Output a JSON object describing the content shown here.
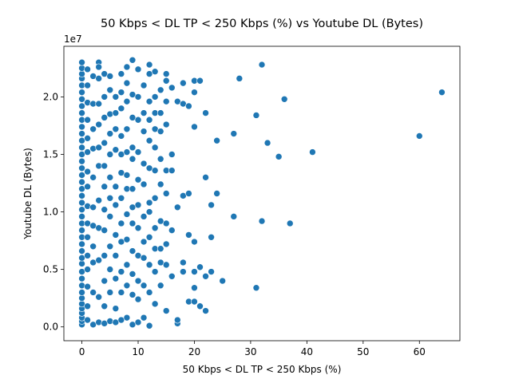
{
  "chart_data": {
    "type": "scatter",
    "title": "50 Kbps < DL TP < 250 Kbps (%) vs Youtube DL (Bytes)",
    "xlabel": "50 Kbps < DL TP < 250 Kbps (%)",
    "ylabel": "Youtube DL (Bytes)",
    "y_offset_label": "1e7",
    "xlim": [
      -3.2,
      67.2
    ],
    "ylim": [
      -0.12,
      2.44
    ],
    "y_scale_factor": 10000000,
    "x_ticks": [
      0,
      10,
      20,
      30,
      40,
      50,
      60
    ],
    "x_tick_labels": [
      "0",
      "10",
      "20",
      "30",
      "40",
      "50",
      "60"
    ],
    "y_ticks": [
      0.0,
      0.5,
      1.0,
      1.5,
      2.0
    ],
    "y_tick_labels": [
      "0.0",
      "0.5",
      "1.0",
      "1.5",
      "2.0"
    ],
    "grid": false,
    "legend": "none",
    "marker_color": "#1f77b4",
    "marker_edge": "#ffffff",
    "points": [
      [
        0,
        0.02
      ],
      [
        0,
        0.05
      ],
      [
        0,
        0.08
      ],
      [
        0,
        0.12
      ],
      [
        0,
        0.16
      ],
      [
        0,
        0.2
      ],
      [
        0,
        0.25
      ],
      [
        0,
        0.3
      ],
      [
        0,
        0.36
      ],
      [
        0,
        0.42
      ],
      [
        0,
        0.48
      ],
      [
        0,
        0.55
      ],
      [
        0,
        0.6
      ],
      [
        0,
        0.66
      ],
      [
        0,
        0.72
      ],
      [
        0,
        0.78
      ],
      [
        0,
        0.84
      ],
      [
        0,
        0.9
      ],
      [
        0,
        0.96
      ],
      [
        0,
        1.02
      ],
      [
        0,
        1.08
      ],
      [
        0,
        1.14
      ],
      [
        0,
        1.2
      ],
      [
        0,
        1.26
      ],
      [
        0,
        1.32
      ],
      [
        0,
        1.38
      ],
      [
        0,
        1.44
      ],
      [
        0,
        1.5
      ],
      [
        0,
        1.56
      ],
      [
        0,
        1.62
      ],
      [
        0,
        1.68
      ],
      [
        0,
        1.74
      ],
      [
        0,
        1.8
      ],
      [
        0,
        1.86
      ],
      [
        0,
        1.92
      ],
      [
        0,
        1.98
      ],
      [
        0,
        2.04
      ],
      [
        0,
        2.1
      ],
      [
        0,
        2.16
      ],
      [
        0,
        2.2
      ],
      [
        0,
        2.25
      ],
      [
        0,
        2.3
      ],
      [
        1,
        0.06
      ],
      [
        1,
        0.18
      ],
      [
        1,
        0.35
      ],
      [
        1,
        0.5
      ],
      [
        1,
        0.62
      ],
      [
        1,
        0.78
      ],
      [
        1,
        0.9
      ],
      [
        1,
        1.05
      ],
      [
        1,
        1.22
      ],
      [
        1,
        1.35
      ],
      [
        1,
        1.52
      ],
      [
        1,
        1.64
      ],
      [
        1,
        1.8
      ],
      [
        1,
        1.95
      ],
      [
        1,
        2.1
      ],
      [
        1,
        2.24
      ],
      [
        2,
        0.02
      ],
      [
        2,
        0.3
      ],
      [
        2,
        0.56
      ],
      [
        2,
        0.7
      ],
      [
        2,
        0.88
      ],
      [
        2,
        1.04
      ],
      [
        2,
        1.3
      ],
      [
        2,
        1.55
      ],
      [
        2,
        1.72
      ],
      [
        2,
        1.94
      ],
      [
        2,
        2.18
      ],
      [
        3,
        0.04
      ],
      [
        3,
        0.26
      ],
      [
        3,
        0.58
      ],
      [
        3,
        0.86
      ],
      [
        3,
        1.1
      ],
      [
        3,
        1.4
      ],
      [
        3,
        1.56
      ],
      [
        3,
        1.76
      ],
      [
        3,
        1.94
      ],
      [
        3,
        2.16
      ],
      [
        3,
        2.3
      ],
      [
        3,
        2.26
      ],
      [
        4,
        0.03
      ],
      [
        4,
        0.18
      ],
      [
        4,
        0.4
      ],
      [
        4,
        0.62
      ],
      [
        4,
        0.84
      ],
      [
        4,
        1.02
      ],
      [
        4,
        1.22
      ],
      [
        4,
        1.4
      ],
      [
        4,
        1.6
      ],
      [
        4,
        1.82
      ],
      [
        4,
        2.0
      ],
      [
        4,
        2.2
      ],
      [
        5,
        0.05
      ],
      [
        5,
        0.3
      ],
      [
        5,
        0.5
      ],
      [
        5,
        0.7
      ],
      [
        5,
        0.96
      ],
      [
        5,
        1.12
      ],
      [
        5,
        1.3
      ],
      [
        5,
        1.5
      ],
      [
        5,
        1.68
      ],
      [
        5,
        1.85
      ],
      [
        5,
        2.06
      ],
      [
        5,
        2.18
      ],
      [
        6,
        0.04
      ],
      [
        6,
        0.16
      ],
      [
        6,
        0.42
      ],
      [
        6,
        0.62
      ],
      [
        6,
        0.8
      ],
      [
        6,
        1.06
      ],
      [
        6,
        1.22
      ],
      [
        6,
        1.54
      ],
      [
        6,
        1.72
      ],
      [
        6,
        1.86
      ],
      [
        6,
        2.0
      ],
      [
        7,
        0.06
      ],
      [
        7,
        0.3
      ],
      [
        7,
        0.48
      ],
      [
        7,
        0.74
      ],
      [
        7,
        0.9
      ],
      [
        7,
        1.12
      ],
      [
        7,
        1.34
      ],
      [
        7,
        1.5
      ],
      [
        7,
        1.66
      ],
      [
        7,
        1.9
      ],
      [
        7,
        2.04
      ],
      [
        7,
        2.2
      ],
      [
        8,
        0.08
      ],
      [
        8,
        0.36
      ],
      [
        8,
        0.54
      ],
      [
        8,
        0.76
      ],
      [
        8,
        0.98
      ],
      [
        8,
        1.2
      ],
      [
        8,
        1.32
      ],
      [
        8,
        1.52
      ],
      [
        8,
        1.72
      ],
      [
        8,
        1.96
      ],
      [
        8,
        2.12
      ],
      [
        8,
        2.26
      ],
      [
        9,
        0.02
      ],
      [
        9,
        0.28
      ],
      [
        9,
        0.46
      ],
      [
        9,
        0.66
      ],
      [
        9,
        0.9
      ],
      [
        9,
        1.04
      ],
      [
        9,
        1.2
      ],
      [
        9,
        1.46
      ],
      [
        9,
        1.56
      ],
      [
        9,
        1.82
      ],
      [
        9,
        2.02
      ],
      [
        9,
        2.32
      ],
      [
        10,
        0.04
      ],
      [
        10,
        0.24
      ],
      [
        10,
        0.4
      ],
      [
        10,
        0.62
      ],
      [
        10,
        0.86
      ],
      [
        10,
        1.06
      ],
      [
        10,
        1.28
      ],
      [
        10,
        1.52
      ],
      [
        10,
        1.8
      ],
      [
        10,
        2.0
      ],
      [
        10,
        2.24
      ],
      [
        11,
        0.08
      ],
      [
        11,
        0.36
      ],
      [
        11,
        0.6
      ],
      [
        11,
        0.74
      ],
      [
        11,
        0.96
      ],
      [
        11,
        1.24
      ],
      [
        11,
        1.42
      ],
      [
        11,
        1.7
      ],
      [
        11,
        1.86
      ],
      [
        11,
        2.1
      ],
      [
        12,
        0.01
      ],
      [
        12,
        0.3
      ],
      [
        12,
        0.54
      ],
      [
        12,
        0.78
      ],
      [
        12,
        1.0
      ],
      [
        12,
        1.08
      ],
      [
        12,
        1.38
      ],
      [
        12,
        1.62
      ],
      [
        12,
        1.8
      ],
      [
        12,
        1.96
      ],
      [
        12,
        2.2
      ],
      [
        12,
        2.28
      ],
      [
        13,
        0.2
      ],
      [
        13,
        0.48
      ],
      [
        13,
        0.68
      ],
      [
        13,
        0.86
      ],
      [
        13,
        1.12
      ],
      [
        13,
        1.36
      ],
      [
        13,
        1.56
      ],
      [
        13,
        1.72
      ],
      [
        13,
        1.86
      ],
      [
        13,
        2.0
      ],
      [
        13,
        2.22
      ],
      [
        14,
        0.36
      ],
      [
        14,
        0.56
      ],
      [
        14,
        0.68
      ],
      [
        14,
        0.92
      ],
      [
        14,
        1.24
      ],
      [
        14,
        1.46
      ],
      [
        14,
        1.7
      ],
      [
        14,
        1.86
      ],
      [
        14,
        2.06
      ],
      [
        15,
        0.14
      ],
      [
        15,
        0.54
      ],
      [
        15,
        0.72
      ],
      [
        15,
        0.9
      ],
      [
        15,
        1.16
      ],
      [
        15,
        1.36
      ],
      [
        15,
        1.76
      ],
      [
        15,
        1.96
      ],
      [
        15,
        2.14
      ],
      [
        15,
        2.2
      ],
      [
        16,
        0.44
      ],
      [
        16,
        0.84
      ],
      [
        16,
        1.36
      ],
      [
        16,
        1.5
      ],
      [
        16,
        2.08
      ],
      [
        17,
        0.03
      ],
      [
        17,
        0.06
      ],
      [
        17,
        1.04
      ],
      [
        17,
        1.96
      ],
      [
        18,
        0.48
      ],
      [
        18,
        0.56
      ],
      [
        18,
        1.14
      ],
      [
        18,
        1.94
      ],
      [
        18,
        2.12
      ],
      [
        19,
        0.22
      ],
      [
        19,
        0.8
      ],
      [
        19,
        1.16
      ],
      [
        19,
        1.92
      ],
      [
        20,
        0.22
      ],
      [
        20,
        0.34
      ],
      [
        20,
        0.48
      ],
      [
        20,
        0.74
      ],
      [
        20,
        1.74
      ],
      [
        20,
        2.04
      ],
      [
        20,
        2.14
      ],
      [
        21,
        0.18
      ],
      [
        21,
        0.52
      ],
      [
        21,
        2.14
      ],
      [
        22,
        0.14
      ],
      [
        22,
        0.44
      ],
      [
        22,
        1.3
      ],
      [
        22,
        1.86
      ],
      [
        23,
        0.48
      ],
      [
        23,
        0.78
      ],
      [
        23,
        1.06
      ],
      [
        24,
        1.16
      ],
      [
        24,
        1.62
      ],
      [
        25,
        0.4
      ],
      [
        27,
        0.96
      ],
      [
        27,
        1.68
      ],
      [
        28,
        2.16
      ],
      [
        31,
        0.34
      ],
      [
        31,
        1.84
      ],
      [
        32,
        0.92
      ],
      [
        32,
        2.28
      ],
      [
        33,
        1.6
      ],
      [
        35,
        1.48
      ],
      [
        36,
        1.98
      ],
      [
        37,
        0.9
      ],
      [
        41,
        1.52
      ],
      [
        60,
        1.66
      ],
      [
        64,
        2.04
      ]
    ]
  }
}
